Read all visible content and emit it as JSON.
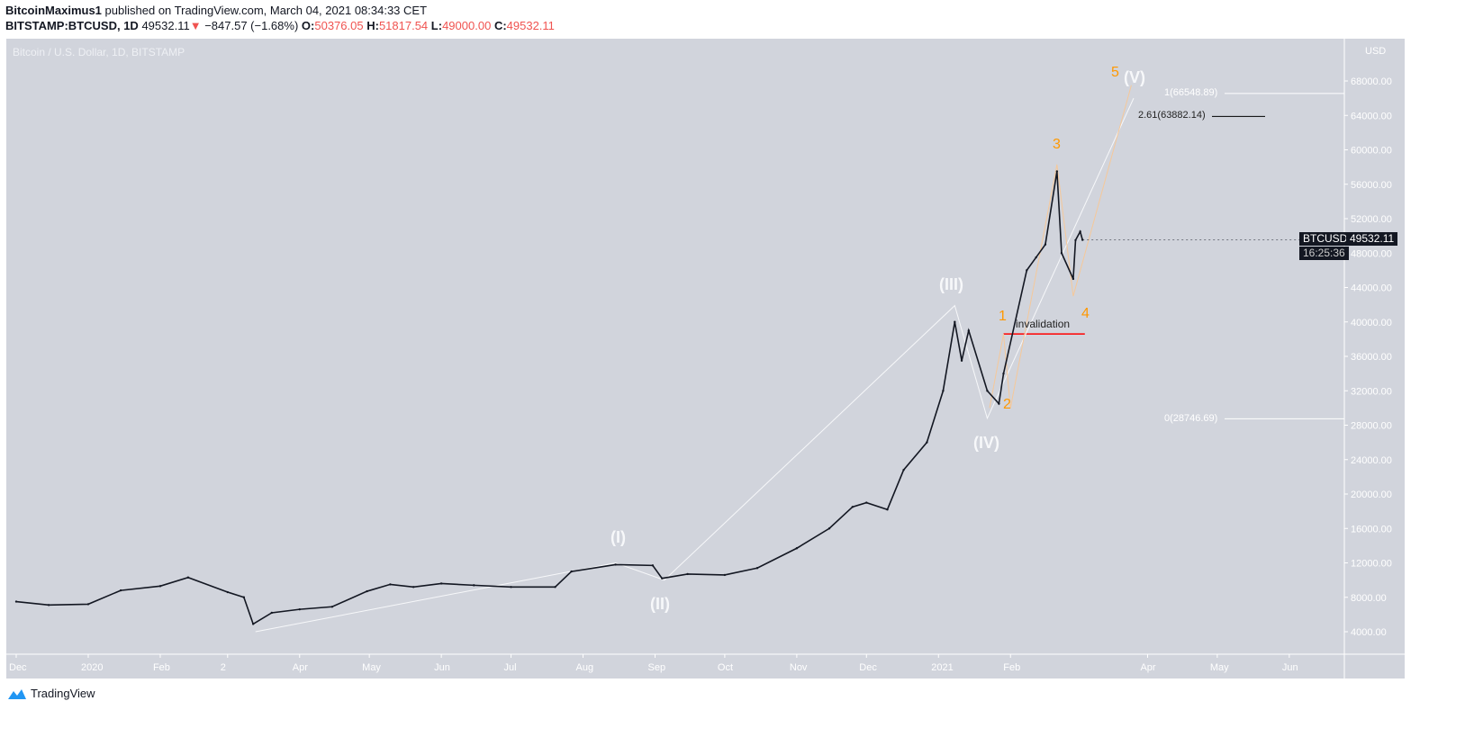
{
  "header": {
    "author": "BitcoinMaximus1",
    "published": "published on TradingView.com, March 04, 2021 08:34:33 CET",
    "symbol": "BITSTAMP:BTCUSD, 1D",
    "last": "49532.11",
    "change": "−847.57 (−1.68%)",
    "o_label": "O:",
    "o": "50376.05",
    "h_label": "H:",
    "h": "51817.54",
    "l_label": "L:",
    "l": "49000.00",
    "c_label": "C:",
    "c": "49532.11"
  },
  "chart_title": "Bitcoin / U.S. Dollar, 1D, BITSTAMP",
  "currency": "USD",
  "price_tag": {
    "symbol": "BTCUSD",
    "price": "49532.11",
    "countdown": "16:25:36"
  },
  "annotations": {
    "w1": "(I)",
    "w2": "(II)",
    "w3": "(III)",
    "w4": "(IV)",
    "w5": "(V)",
    "s1": "1",
    "s2": "2",
    "s3": "3",
    "s4": "4",
    "s5": "5",
    "invalidation": "invalidation",
    "fib1": "1(66548.89)",
    "fib261": "2.61(63882.14)",
    "fib0": "0(28746.69)"
  },
  "colors": {
    "background": "#d1d4dc",
    "wave_line": "#f7f8fa",
    "subwave": "#ff9800",
    "invalidation": "#ff0000",
    "down": "#f05350"
  },
  "brand": "TradingView",
  "chart_data": {
    "type": "line",
    "title": "Bitcoin / U.S. Dollar, 1D, BITSTAMP",
    "ylabel": "USD",
    "ylim": [
      2000,
      73000
    ],
    "y_ticks": [
      4000,
      8000,
      12000,
      16000,
      20000,
      24000,
      28000,
      32000,
      36000,
      40000,
      44000,
      48000,
      52000,
      56000,
      60000,
      64000,
      68000
    ],
    "x_ticks": [
      [
        "2019-12-01",
        "Dec"
      ],
      [
        "2020-01-01",
        "2020"
      ],
      [
        "2020-02-01",
        "Feb"
      ],
      [
        "2020-03-01",
        "2"
      ],
      [
        "2020-04-01",
        "Apr"
      ],
      [
        "2020-05-01",
        "May"
      ],
      [
        "2020-06-01",
        "Jun"
      ],
      [
        "2020-07-01",
        "Jul"
      ],
      [
        "2020-08-01",
        "Aug"
      ],
      [
        "2020-09-01",
        "Sep"
      ],
      [
        "2020-10-01",
        "Oct"
      ],
      [
        "2020-11-01",
        "Nov"
      ],
      [
        "2020-12-01",
        "Dec"
      ],
      [
        "2021-01-01",
        "2021"
      ],
      [
        "2021-02-01",
        "Feb"
      ],
      [
        "2021-04-01",
        "Apr"
      ],
      [
        "2021-05-01",
        "May"
      ],
      [
        "2021-06-01",
        "Jun"
      ]
    ],
    "price": [
      [
        "2019-12-01",
        7500
      ],
      [
        "2019-12-15",
        7100
      ],
      [
        "2020-01-01",
        7200
      ],
      [
        "2020-01-15",
        8800
      ],
      [
        "2020-02-01",
        9300
      ],
      [
        "2020-02-13",
        10300
      ],
      [
        "2020-03-01",
        8600
      ],
      [
        "2020-03-08",
        8000
      ],
      [
        "2020-03-12",
        4900
      ],
      [
        "2020-03-20",
        6200
      ],
      [
        "2020-04-01",
        6600
      ],
      [
        "2020-04-15",
        6900
      ],
      [
        "2020-04-30",
        8700
      ],
      [
        "2020-05-10",
        9500
      ],
      [
        "2020-05-20",
        9200
      ],
      [
        "2020-06-01",
        9600
      ],
      [
        "2020-06-15",
        9400
      ],
      [
        "2020-07-01",
        9200
      ],
      [
        "2020-07-20",
        9200
      ],
      [
        "2020-07-27",
        11000
      ],
      [
        "2020-08-15",
        11800
      ],
      [
        "2020-08-31",
        11700
      ],
      [
        "2020-09-04",
        10200
      ],
      [
        "2020-09-15",
        10700
      ],
      [
        "2020-10-01",
        10600
      ],
      [
        "2020-10-15",
        11400
      ],
      [
        "2020-11-01",
        13700
      ],
      [
        "2020-11-15",
        16000
      ],
      [
        "2020-11-25",
        18500
      ],
      [
        "2020-12-01",
        19000
      ],
      [
        "2020-12-10",
        18200
      ],
      [
        "2020-12-17",
        22800
      ],
      [
        "2020-12-27",
        26000
      ],
      [
        "2021-01-03",
        32000
      ],
      [
        "2021-01-08",
        40000
      ],
      [
        "2021-01-11",
        35500
      ],
      [
        "2021-01-14",
        39000
      ],
      [
        "2021-01-22",
        32000
      ],
      [
        "2021-01-27",
        30500
      ],
      [
        "2021-01-29",
        34000
      ],
      [
        "2021-02-08",
        46000
      ],
      [
        "2021-02-12",
        47500
      ],
      [
        "2021-02-16",
        49000
      ],
      [
        "2021-02-21",
        57500
      ],
      [
        "2021-02-23",
        48000
      ],
      [
        "2021-02-28",
        45000
      ],
      [
        "2021-03-01",
        49500
      ],
      [
        "2021-03-03",
        50500
      ],
      [
        "2021-03-04",
        49532.11
      ]
    ],
    "wave_path": [
      [
        "2020-03-13",
        4000
      ],
      [
        "2020-08-15",
        12000
      ],
      [
        "2020-09-05",
        10000
      ],
      [
        "2021-01-08",
        41900
      ],
      [
        "2021-01-22",
        28800
      ],
      [
        "2021-03-26",
        66000
      ]
    ],
    "subwave_path": [
      [
        "2021-01-23",
        30000
      ],
      [
        "2021-01-29",
        38600
      ],
      [
        "2021-02-01",
        30000
      ],
      [
        "2021-02-21",
        58300
      ],
      [
        "2021-02-28",
        43000
      ],
      [
        "2021-03-25",
        67500
      ]
    ],
    "levels": [
      {
        "label": "1(66548.89)",
        "value": 66548.89
      },
      {
        "label": "2.61(63882.14)",
        "value": 63882.14
      },
      {
        "label": "0(28746.69)",
        "value": 28746.69
      },
      {
        "label": "invalidation",
        "value": 38600
      }
    ],
    "last_price": 49532.11
  }
}
